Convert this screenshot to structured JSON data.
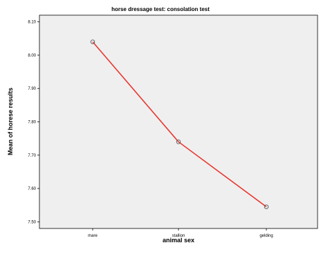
{
  "chart_data": {
    "type": "line",
    "title": "horse dressage test: consolation test",
    "xlabel": "animal sex",
    "ylabel": "Mean of horese results",
    "categories": [
      "mare",
      "stallion",
      "gelding"
    ],
    "series": [
      {
        "values": [
          8.04,
          7.74,
          7.545
        ]
      }
    ],
    "ylim": [
      7.48,
      8.12
    ],
    "yticks": [
      "8.10",
      "8.00",
      "7.90",
      "7.80",
      "7.70",
      "7.60",
      "7.50"
    ],
    "grid": false,
    "line_color": "#e8372f",
    "marker_color": "#555555",
    "plot_background": "#efefef"
  }
}
